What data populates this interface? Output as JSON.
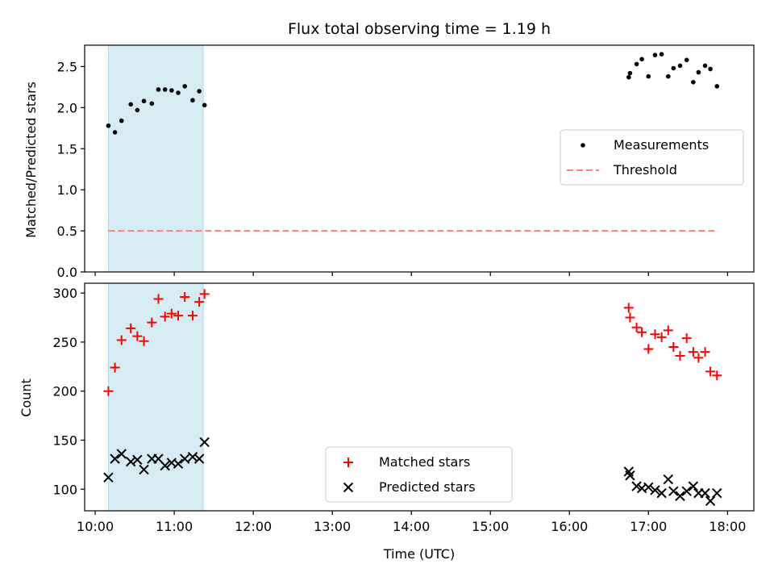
{
  "chart_data": [
    {
      "type": "scatter",
      "title": "Flux total observing time = 1.19 h",
      "xlabel": "",
      "ylabel": "Matched/Predicted stars",
      "xlim": [
        "09:52",
        "18:20"
      ],
      "ylim": [
        0,
        2.76
      ],
      "yticks": [
        "0.0",
        "0.5",
        "1.0",
        "1.5",
        "2.0",
        "2.5"
      ],
      "shaded_interval": [
        "10:10",
        "11:22"
      ],
      "shade_color": "#add8e6",
      "legend_position": "center-right",
      "series": [
        {
          "name": "Measurements",
          "marker": "dot",
          "color": "#000000",
          "x": [
            "10:10",
            "10:15",
            "10:20",
            "10:27",
            "10:32",
            "10:37",
            "10:43",
            "10:48",
            "10:53",
            "10:58",
            "11:03",
            "11:08",
            "11:14",
            "11:19",
            "11:23",
            "16:45",
            "16:46",
            "16:51",
            "16:55",
            "17:00",
            "17:05",
            "17:10",
            "17:15",
            "17:19",
            "17:24",
            "17:29",
            "17:34",
            "17:38",
            "17:43",
            "17:47",
            "17:52"
          ],
          "y": [
            1.78,
            1.7,
            1.84,
            2.04,
            1.97,
            2.08,
            2.05,
            2.22,
            2.22,
            2.21,
            2.18,
            2.26,
            2.09,
            2.2,
            2.03,
            2.37,
            2.42,
            2.53,
            2.59,
            2.38,
            2.64,
            2.65,
            2.38,
            2.48,
            2.51,
            2.58,
            2.31,
            2.43,
            2.51,
            2.47,
            2.26
          ]
        },
        {
          "name": "Threshold",
          "style": "dashed",
          "color": "#ff7f7f",
          "x": [
            "10:10",
            "17:52"
          ],
          "y": [
            0.5,
            0.5
          ]
        }
      ]
    },
    {
      "type": "scatter",
      "title": "",
      "xlabel": "Time (UTC)",
      "ylabel": "Count",
      "xlim": [
        "09:52",
        "18:20"
      ],
      "ylim": [
        78,
        310
      ],
      "xticks": [
        "10:00",
        "11:00",
        "12:00",
        "13:00",
        "14:00",
        "15:00",
        "16:00",
        "17:00",
        "18:00"
      ],
      "yticks": [
        "100",
        "150",
        "200",
        "250",
        "300"
      ],
      "shaded_interval": [
        "10:10",
        "11:22"
      ],
      "shade_color": "#add8e6",
      "legend_position": "lower-center",
      "series": [
        {
          "name": "Matched stars",
          "marker": "plus",
          "color": "#ff0000",
          "x": [
            "10:10",
            "10:15",
            "10:20",
            "10:27",
            "10:32",
            "10:37",
            "10:43",
            "10:48",
            "10:53",
            "10:58",
            "11:03",
            "11:08",
            "11:14",
            "11:19",
            "11:23",
            "16:45",
            "16:46",
            "16:51",
            "16:55",
            "17:00",
            "17:05",
            "17:10",
            "17:15",
            "17:19",
            "17:24",
            "17:29",
            "17:34",
            "17:38",
            "17:43",
            "17:47",
            "17:52"
          ],
          "y": [
            200,
            224,
            252,
            264,
            256,
            251,
            270,
            294,
            276,
            279,
            277,
            296,
            277,
            291,
            299,
            285,
            275,
            265,
            260,
            243,
            258,
            255,
            262,
            245,
            236,
            254,
            240,
            234,
            240,
            220,
            216
          ]
        },
        {
          "name": "Predicted stars",
          "marker": "x",
          "color": "#000000",
          "x": [
            "10:10",
            "10:15",
            "10:20",
            "10:27",
            "10:32",
            "10:37",
            "10:43",
            "10:48",
            "10:53",
            "10:58",
            "11:03",
            "11:08",
            "11:14",
            "11:19",
            "11:23",
            "16:45",
            "16:46",
            "16:51",
            "16:55",
            "17:00",
            "17:05",
            "17:10",
            "17:15",
            "17:19",
            "17:24",
            "17:29",
            "17:34",
            "17:38",
            "17:43",
            "17:47",
            "17:52"
          ],
          "y": [
            112,
            131,
            136,
            128,
            130,
            120,
            131,
            131,
            124,
            127,
            126,
            131,
            133,
            131,
            148,
            118,
            114,
            103,
            101,
            102,
            99,
            96,
            110,
            98,
            93,
            98,
            103,
            96,
            96,
            88,
            96
          ]
        }
      ]
    }
  ]
}
